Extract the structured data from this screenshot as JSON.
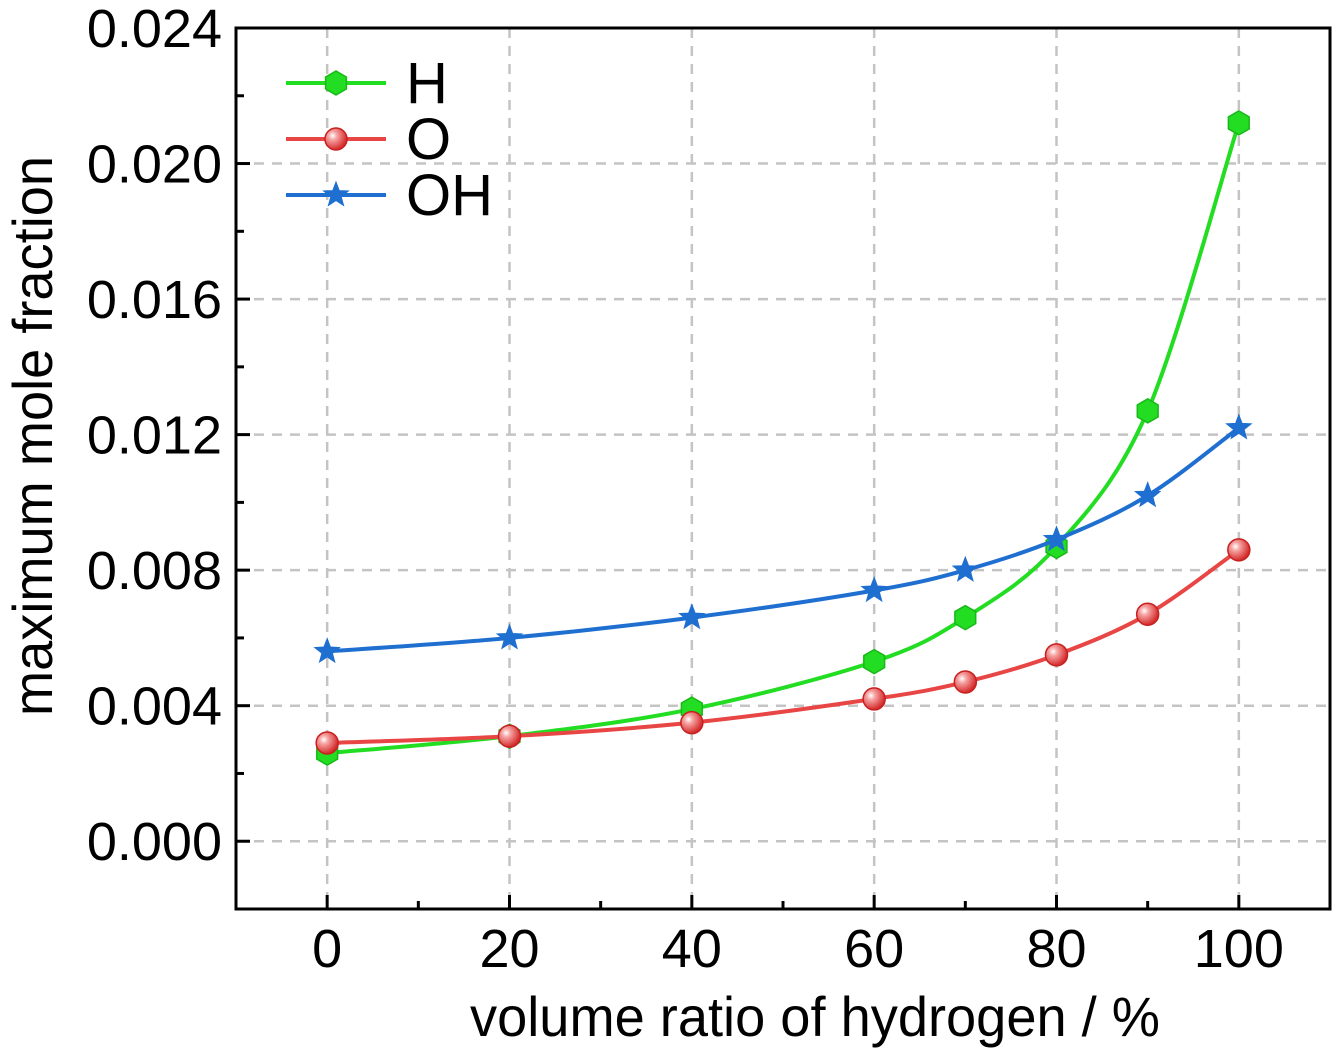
{
  "chart_data": {
    "type": "line",
    "xlabel": "volume ratio of hydrogen / %",
    "ylabel": "maximum mole fraction",
    "xlim": [
      -10,
      110
    ],
    "ylim": [
      -0.002,
      0.024
    ],
    "xticks": [
      0,
      20,
      40,
      60,
      80,
      100
    ],
    "xtick_labels": [
      "0",
      "20",
      "40",
      "60",
      "80",
      "100"
    ],
    "yticks": [
      0.0,
      0.004,
      0.008,
      0.012,
      0.016,
      0.02,
      0.024
    ],
    "ytick_labels": [
      "0.000",
      "0.004",
      "0.008",
      "0.012",
      "0.016",
      "0.020",
      "0.024"
    ],
    "grid": true,
    "legend_position": "top-left",
    "series": [
      {
        "name": "H",
        "color": "#22dd22",
        "marker": "hexagon",
        "x": [
          0,
          20,
          40,
          60,
          70,
          80,
          90,
          100
        ],
        "y": [
          0.0026,
          0.0031,
          0.0039,
          0.0053,
          0.0066,
          0.0087,
          0.0127,
          0.0212
        ]
      },
      {
        "name": "O",
        "color": "#e84545",
        "marker": "sphere",
        "x": [
          0,
          20,
          40,
          60,
          70,
          80,
          90,
          100
        ],
        "y": [
          0.0029,
          0.0031,
          0.0035,
          0.0042,
          0.0047,
          0.0055,
          0.0067,
          0.0086
        ]
      },
      {
        "name": "OH",
        "color": "#1f6fd1",
        "marker": "star",
        "x": [
          0,
          20,
          40,
          60,
          70,
          80,
          90,
          100
        ],
        "y": [
          0.0056,
          0.006,
          0.0066,
          0.0074,
          0.008,
          0.0089,
          0.0102,
          0.0122
        ]
      }
    ]
  }
}
